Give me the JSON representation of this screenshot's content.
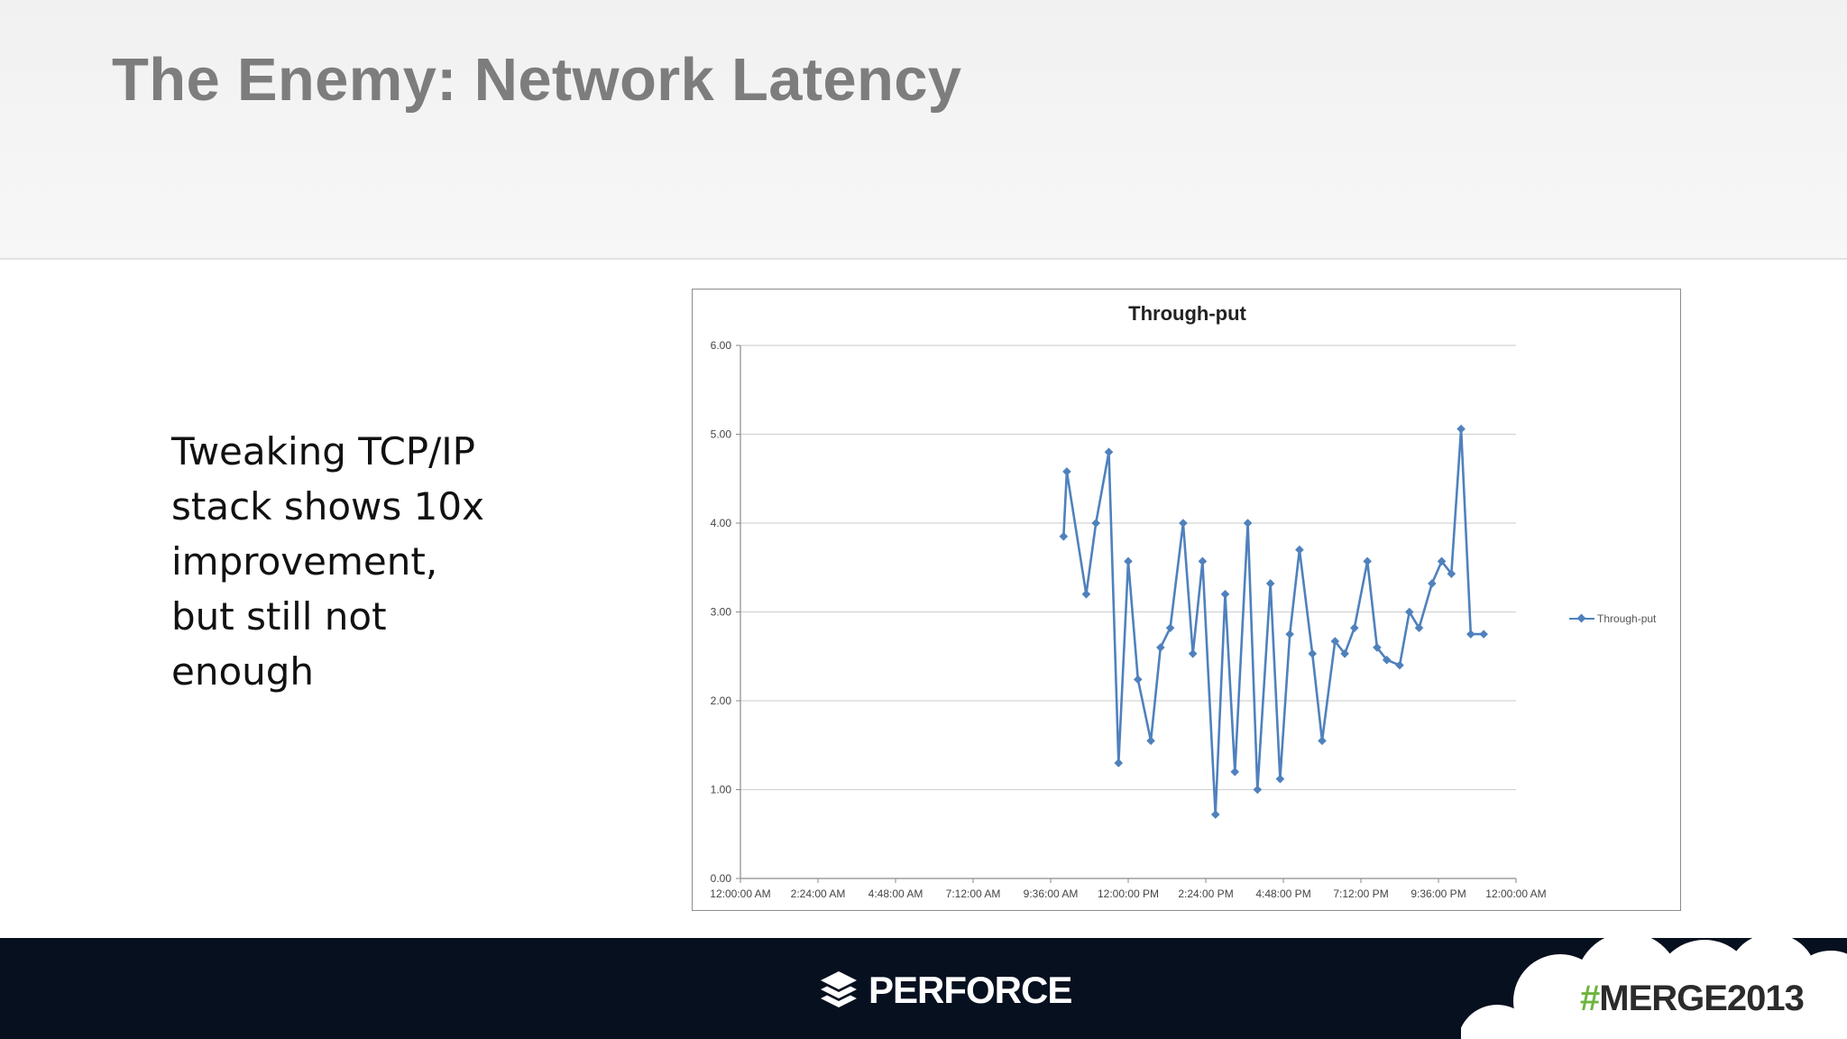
{
  "slide": {
    "title": "The Enemy: Network Latency",
    "body_lines": [
      "Tweaking TCP/IP",
      "stack shows 10x",
      "improvement,",
      "but still not",
      "enough"
    ]
  },
  "footer": {
    "brand": "PERFORCE",
    "hashtag_symbol": "#",
    "hashtag_text": "MERGE2013",
    "colors": {
      "bar": "#07101f",
      "cloud": "#ffffff",
      "hash": "#6fb43f"
    }
  },
  "chart_data": {
    "type": "line",
    "title": "Through-put",
    "xlabel": "",
    "ylabel": "",
    "ylim": [
      0,
      6
    ],
    "xlim_hours": [
      0,
      24
    ],
    "y_ticks": [
      "0.00",
      "1.00",
      "2.00",
      "3.00",
      "4.00",
      "5.00",
      "6.00"
    ],
    "x_ticks": [
      "12:00:00 AM",
      "2:24:00 AM",
      "4:48:00 AM",
      "7:12:00 AM",
      "9:36:00 AM",
      "12:00:00 PM",
      "2:24:00 PM",
      "4:48:00 PM",
      "7:12:00 PM",
      "9:36:00 PM",
      "12:00:00 AM"
    ],
    "grid": true,
    "legend_position": "right",
    "series_color": "#4f81bd",
    "series": [
      {
        "name": "Through-put",
        "x": [
          10.0,
          10.1,
          10.7,
          11.0,
          11.4,
          11.7,
          12.0,
          12.3,
          12.7,
          13.0,
          13.3,
          13.7,
          14.0,
          14.3,
          14.7,
          15.0,
          15.3,
          15.7,
          16.0,
          16.4,
          16.7,
          17.0,
          17.3,
          17.7,
          18.0,
          18.4,
          18.7,
          19.0,
          19.4,
          19.7,
          20.0,
          20.4,
          20.7,
          21.0,
          21.4,
          21.7,
          22.0,
          22.3,
          22.6,
          23.0
        ],
        "values": [
          3.85,
          4.58,
          3.2,
          4.0,
          4.8,
          1.3,
          3.57,
          2.24,
          1.55,
          2.6,
          2.82,
          4.0,
          2.53,
          3.57,
          0.72,
          3.2,
          1.2,
          4.0,
          1.0,
          3.32,
          1.12,
          2.75,
          3.7,
          2.53,
          1.55,
          2.67,
          2.53,
          2.82,
          3.57,
          2.6,
          2.46,
          2.4,
          3.0,
          2.82,
          3.32,
          3.57,
          3.43,
          5.06,
          2.75,
          2.75
        ]
      }
    ]
  }
}
